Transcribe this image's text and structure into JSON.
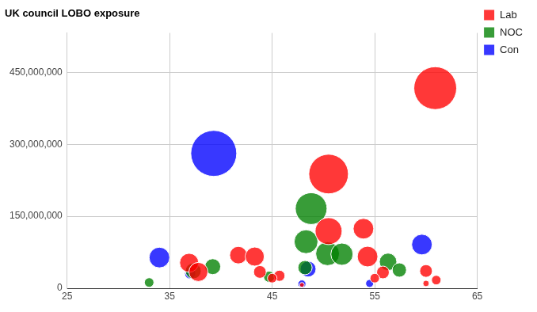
{
  "chart_data": {
    "type": "bubble",
    "title": "UK council LOBO exposure",
    "xlim": [
      25,
      65
    ],
    "xticks": [
      25,
      35,
      45,
      55,
      65
    ],
    "ylim": [
      0,
      532000000
    ],
    "yticks": [
      0,
      {
        "value": 150000000,
        "label": "150,000,000"
      },
      {
        "value": 300000000,
        "label": "300,000,000"
      },
      {
        "value": 450000000,
        "label": "450,000,000"
      }
    ],
    "grid": true,
    "legend": "right",
    "series": [
      {
        "name": "Lab",
        "color": "#ff0000",
        "x": [
          60.9,
          50.5,
          50.5,
          53.9,
          54.3,
          36.9,
          37.8,
          41.7,
          43.3,
          43.8,
          45.7,
          45.0,
          55.8,
          55.0,
          60.0,
          61.0,
          60.0,
          47.9
        ],
        "values": [
          417000000,
          238000000,
          119000000,
          124000000,
          66000000,
          53000000,
          34000000,
          69000000,
          66000000,
          34000000,
          26000000,
          21000000,
          33000000,
          21000000,
          36000000,
          17000000,
          10000000,
          7000000
        ],
        "size": [
          27,
          25,
          17,
          13,
          13,
          12,
          12,
          11,
          12,
          8,
          7,
          6,
          8,
          6,
          8,
          6,
          4,
          3
        ]
      },
      {
        "name": "NOC",
        "color": "#008000",
        "x": [
          48.8,
          48.3,
          50.4,
          51.8,
          56.3,
          57.4,
          39.2,
          37.3,
          48.2,
          44.7,
          33.0
        ],
        "values": [
          166000000,
          97000000,
          72000000,
          71000000,
          55000000,
          38000000,
          45000000,
          36000000,
          43000000,
          24000000,
          12000000
        ],
        "size": [
          20,
          15,
          15,
          14,
          11,
          9,
          10,
          10,
          9,
          7,
          6
        ]
      },
      {
        "name": "Con",
        "color": "#0000ff",
        "x": [
          39.3,
          34.0,
          59.6,
          48.5,
          37.0,
          54.5,
          47.9
        ],
        "values": [
          281000000,
          64000000,
          91000000,
          40000000,
          31000000,
          10000000,
          9000000
        ],
        "size": [
          29,
          13,
          13,
          10,
          7,
          5,
          5
        ]
      }
    ]
  }
}
